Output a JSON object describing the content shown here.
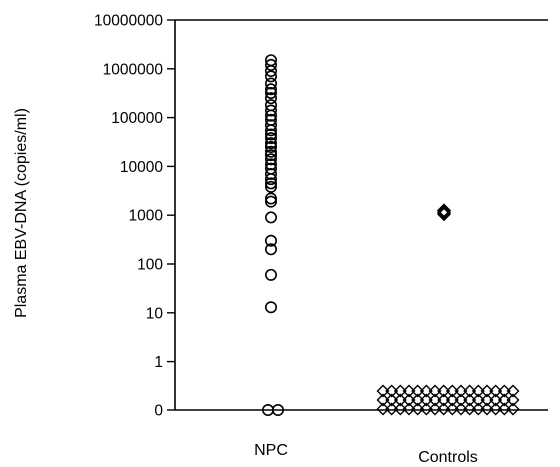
{
  "chart_data": {
    "type": "scatter",
    "title": "",
    "xlabel": "",
    "ylabel": "Plasma EBV-DNA (copies/ml)",
    "yscale": "log",
    "ylim": [
      0,
      10000000
    ],
    "yticks": [
      {
        "value": 10000000,
        "label": "10000000"
      },
      {
        "value": 1000000,
        "label": "1000000"
      },
      {
        "value": 100000,
        "label": "100000"
      },
      {
        "value": 10000,
        "label": "10000"
      },
      {
        "value": 1000,
        "label": "1000"
      },
      {
        "value": 100,
        "label": "100"
      },
      {
        "value": 10,
        "label": "10"
      },
      {
        "value": 1,
        "label": "1"
      },
      {
        "value": 0,
        "label": "0"
      }
    ],
    "categories": [
      "NPC",
      "Controls"
    ],
    "grid": false,
    "series": [
      {
        "category": "NPC",
        "marker": "circle",
        "values": [
          1500000,
          1200000,
          900000,
          700000,
          500000,
          380000,
          320000,
          250000,
          180000,
          140000,
          110000,
          90000,
          70000,
          55000,
          45000,
          38000,
          30000,
          25000,
          20000,
          17000,
          14000,
          11000,
          9000,
          7000,
          5500,
          4500,
          3800,
          2200,
          1900,
          900,
          300,
          200,
          60,
          13,
          0,
          0
        ]
      },
      {
        "category": "Controls",
        "marker": "diamond",
        "values": [
          1250,
          1150,
          1050,
          0.6,
          0.6,
          0.6,
          0.6,
          0.6,
          0.6,
          0.6,
          0.6,
          0.6,
          0.6,
          0.6,
          0.6,
          0.6,
          0.6,
          0.6,
          0.6,
          0.35,
          0.35,
          0.35,
          0.35,
          0.35,
          0.35,
          0.35,
          0.35,
          0.35,
          0.35,
          0.35,
          0.35,
          0.35,
          0.35,
          0.35,
          0.35,
          0.2,
          0.2,
          0.2,
          0.2,
          0.2,
          0.2,
          0.2,
          0.2,
          0.2,
          0.2,
          0.2,
          0.2,
          0.2,
          0.2,
          0.2,
          0.2
        ]
      }
    ]
  }
}
